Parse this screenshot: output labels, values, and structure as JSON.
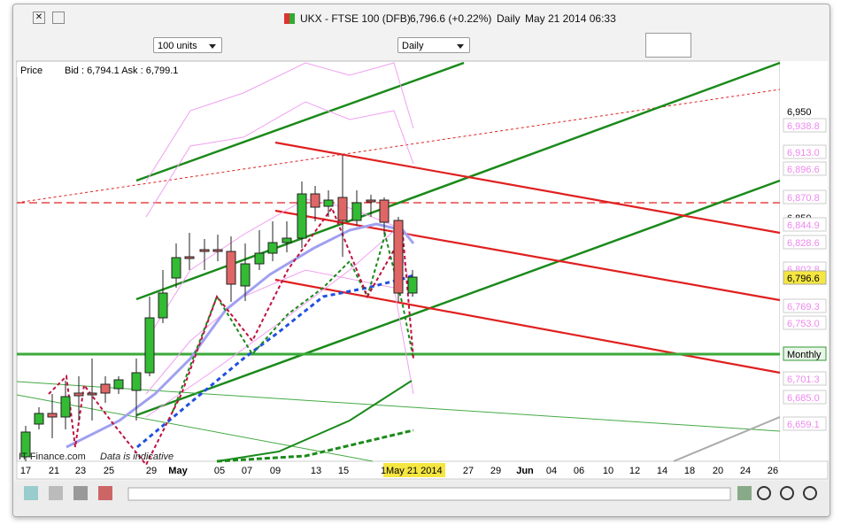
{
  "header": {
    "instrument": "UKX - FTSE 100 (DFB)",
    "price": "6,796.6 (+0.22%)",
    "interval": "Daily",
    "timestamp": "May 21 2014 06:33"
  },
  "toolbar": {
    "quantity": "100 units",
    "period": "Daily"
  },
  "chart": {
    "price_label": "Price",
    "bid_ask": "Bid : 6,794.1 Ask : 6,799.1",
    "watermark": "IT-Finance.com",
    "note": "Data is indicative",
    "cursor_date": "May 21 2014",
    "x_labels": [
      "17",
      "21",
      "23",
      "25",
      "29",
      "May",
      "05",
      "07",
      "09",
      "13",
      "15",
      "1",
      "27",
      "29",
      "Jun",
      "04",
      "06",
      "10",
      "12",
      "14",
      "18",
      "20",
      "24",
      "26"
    ],
    "right_axis": [
      {
        "label": "6,950",
        "color": "#000000"
      },
      {
        "label": "6,938.8",
        "color": "#ee88ee"
      },
      {
        "label": "6,913.0",
        "color": "#ee88ee"
      },
      {
        "label": "6,896.6",
        "color": "#ee88ee"
      },
      {
        "label": "6,870.8",
        "color": "#ee88ee"
      },
      {
        "label": "6,850",
        "color": "#000000"
      },
      {
        "label": "6,844.9",
        "color": "#ee88ee"
      },
      {
        "label": "6,828.6",
        "color": "#ee88ee"
      },
      {
        "label": "6,802.8",
        "color": "#ee88ee"
      },
      {
        "label": "6,796.6",
        "color": "#000000"
      },
      {
        "label": "6,769.3",
        "color": "#ee88ee"
      },
      {
        "label": "6,753.0",
        "color": "#ee88ee"
      },
      {
        "label": "Monthly",
        "color": "#000000"
      },
      {
        "label": "6,701.3",
        "color": "#ee88ee"
      },
      {
        "label": "6,685.0",
        "color": "#ee88ee"
      },
      {
        "label": "6,659.1",
        "color": "#ee88ee"
      }
    ]
  }
}
